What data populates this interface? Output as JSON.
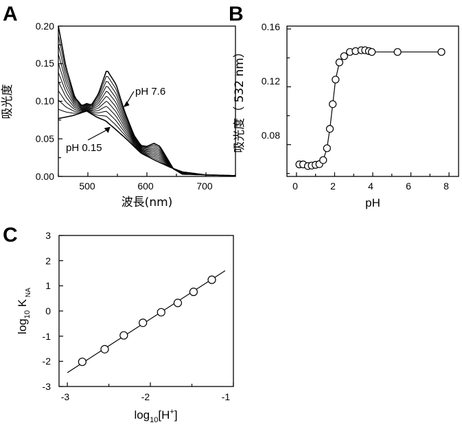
{
  "panels": {
    "a": {
      "letter": "A"
    },
    "b": {
      "letter": "B"
    },
    "c": {
      "letter": "C"
    }
  },
  "chart_data": [
    {
      "id": "A",
      "type": "line",
      "xlabel": "波長(nm)",
      "ylabel": "吸光度",
      "xlim": [
        450,
        750
      ],
      "ylim": [
        0,
        0.2
      ],
      "xticks": [
        500,
        600,
        700
      ],
      "yticks": [
        "0.00",
        "0.05",
        "0.10",
        "0.15",
        "0.20"
      ],
      "annotations": [
        {
          "text": "pH 7.6",
          "points_to": [
            560,
            0.092
          ]
        },
        {
          "text": "pH 0.15",
          "points_to": [
            538,
            0.066
          ]
        }
      ],
      "endpoints": {
        "low_pH": {
          "x": [
            450,
            475,
            498,
            515,
            530,
            545,
            565,
            590,
            615,
            640,
            660,
            700,
            750
          ],
          "y": [
            0.077,
            0.081,
            0.087,
            0.079,
            0.074,
            0.064,
            0.05,
            0.031,
            0.021,
            0.012,
            0.006,
            0.002,
            0.001
          ]
        },
        "high_pH": {
          "x": [
            450,
            463,
            478,
            490,
            498,
            506,
            518,
            532,
            548,
            562,
            578,
            590,
            600,
            612,
            622,
            632,
            645,
            660,
            700,
            750
          ],
          "y": [
            0.2,
            0.145,
            0.105,
            0.094,
            0.097,
            0.095,
            0.11,
            0.142,
            0.122,
            0.087,
            0.055,
            0.041,
            0.04,
            0.044,
            0.04,
            0.027,
            0.01,
            0.003,
            0.002,
            0.001
          ]
        }
      },
      "curve_count": 11
    },
    {
      "id": "B",
      "type": "scatter",
      "xlabel": "pH",
      "ylabel": "吸光度（ 532 nm）",
      "xlim": [
        -0.5,
        8.5
      ],
      "ylim": [
        0.058,
        0.162
      ],
      "xticks": [
        "0",
        "2",
        "4",
        "6",
        "8"
      ],
      "yticks": [
        "0.08",
        "0.12",
        "0.16"
      ],
      "x": [
        0.15,
        0.35,
        0.6,
        0.8,
        1.0,
        1.2,
        1.4,
        1.6,
        1.75,
        1.9,
        2.05,
        2.25,
        2.5,
        2.8,
        3.1,
        3.4,
        3.6,
        3.8,
        3.95,
        5.3,
        7.6
      ],
      "y": [
        0.0663,
        0.0663,
        0.0652,
        0.0655,
        0.066,
        0.0665,
        0.0693,
        0.0775,
        0.0909,
        0.108,
        0.125,
        0.1369,
        0.1412,
        0.1441,
        0.1447,
        0.1453,
        0.1453,
        0.1447,
        0.1441,
        0.1441,
        0.1441
      ]
    },
    {
      "id": "C",
      "type": "scatter",
      "xlabel": "log10[H+]",
      "ylabel": "log10 K NA",
      "xlim": [
        -3.1,
        -1.0
      ],
      "ylim": [
        -3,
        3
      ],
      "xticks": [
        "-3",
        "-2",
        "-1"
      ],
      "yticks": [
        "-3",
        "-2",
        "-1",
        "0",
        "1",
        "2",
        "3"
      ],
      "x": [
        -2.82,
        -2.55,
        -2.32,
        -2.09,
        -1.87,
        -1.67,
        -1.48,
        -1.26
      ],
      "y": [
        -2.02,
        -1.52,
        -0.97,
        -0.47,
        -0.05,
        0.32,
        0.76,
        1.24
      ],
      "fit_line": {
        "x": [
          -3.0,
          -1.1
        ],
        "y": [
          -2.45,
          1.6
        ]
      }
    }
  ]
}
